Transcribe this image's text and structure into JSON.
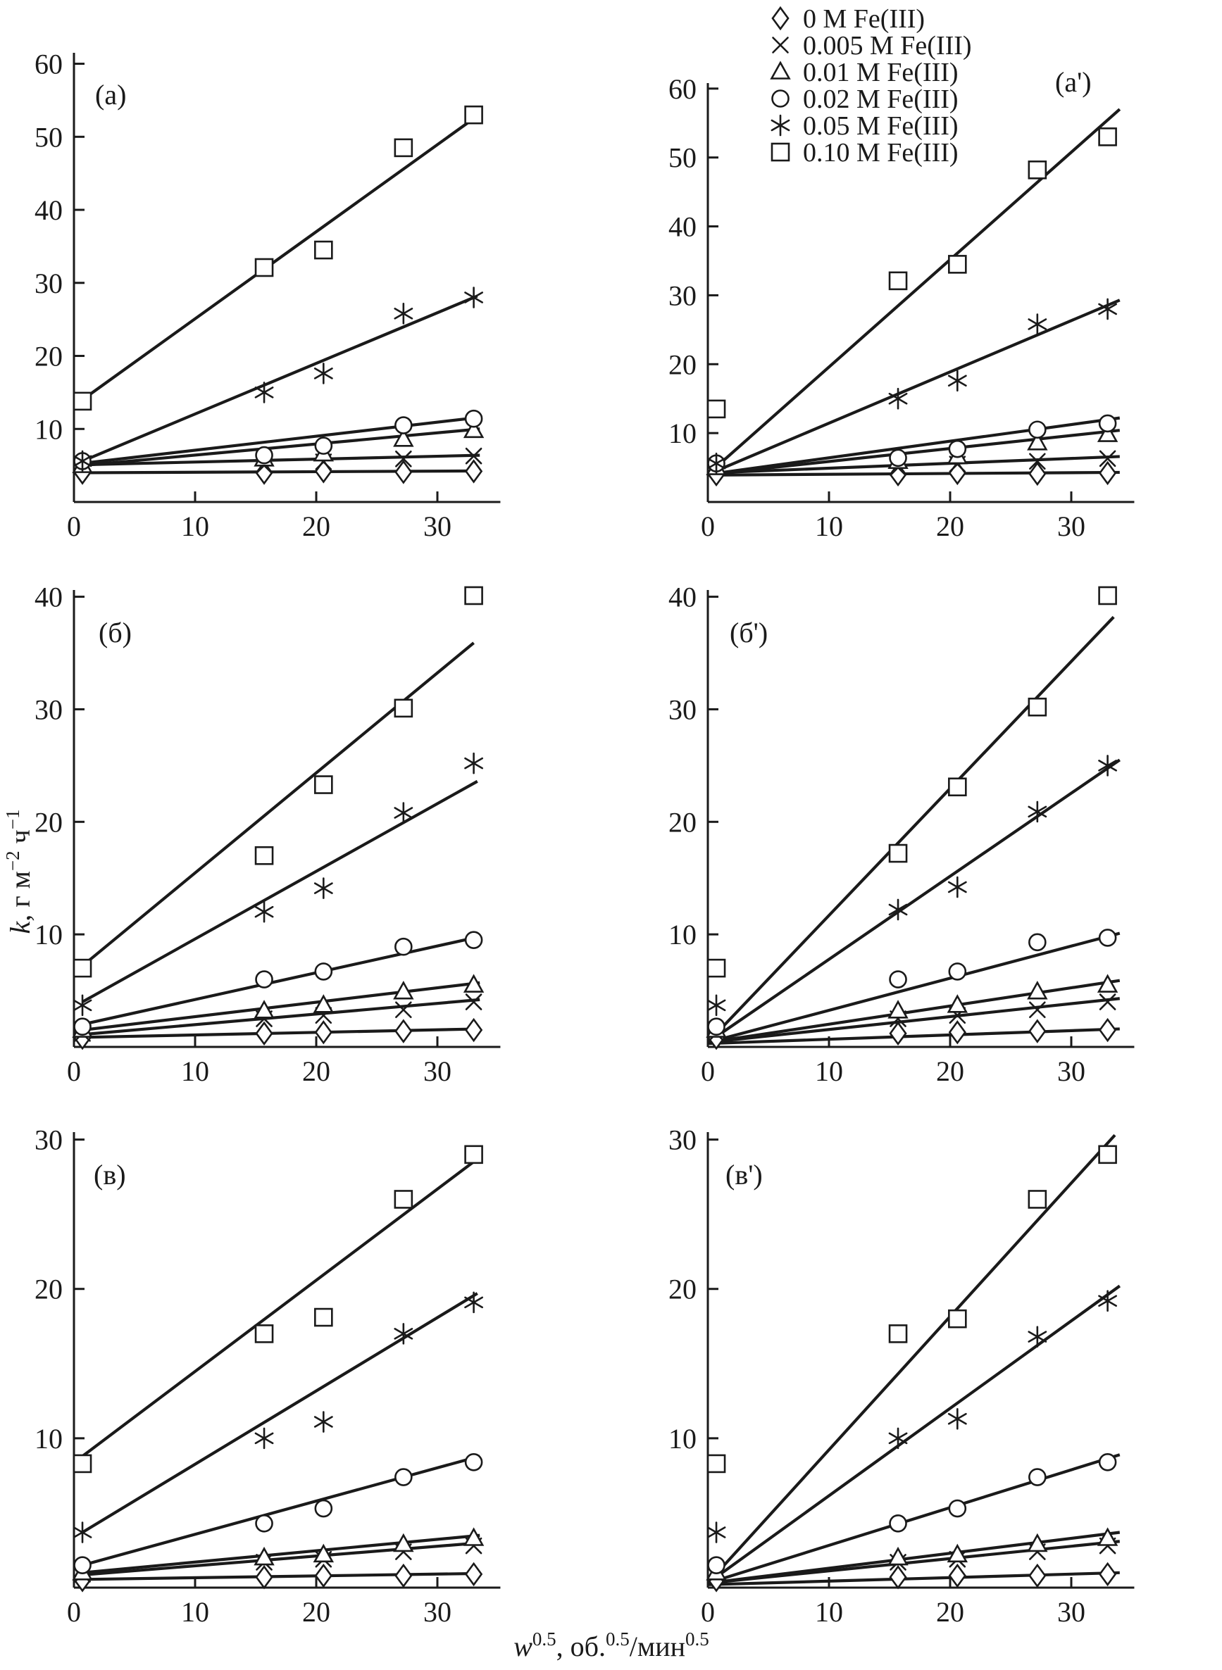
{
  "figure": {
    "background": "#ffffff",
    "ink_color": "#1a1a1a",
    "x_axis_label_plain": "w0.5, об.0.5/мин0.5",
    "y_axis_label_plain": "k, г м−2 ч−1",
    "x_axis_label_parts": [
      {
        "t": "w",
        "italic": true
      },
      {
        "t": "0.5",
        "sup": true
      },
      {
        "t": ", об."
      },
      {
        "t": "0.5",
        "sup": true
      },
      {
        "t": "/мин"
      },
      {
        "t": "0.5",
        "sup": true
      }
    ],
    "y_axis_label_parts": [
      {
        "t": "k",
        "italic": true
      },
      {
        "t": ", г м"
      },
      {
        "t": "−2",
        "sup": true
      },
      {
        "t": " ч"
      },
      {
        "t": "−1",
        "sup": true
      }
    ]
  },
  "legend": {
    "items": [
      {
        "marker": "diamond",
        "label": "0 M Fe(III)"
      },
      {
        "marker": "x-cross",
        "label": "0.005 M Fe(III)"
      },
      {
        "marker": "triangle",
        "label": "0.01 M Fe(III)"
      },
      {
        "marker": "circle",
        "label": "0.02 M Fe(III)"
      },
      {
        "marker": "asterisk",
        "label": "0.05 M Fe(III)"
      },
      {
        "marker": "square",
        "label": "0.10 M Fe(III)"
      }
    ]
  },
  "chart_data": [
    {
      "id": "a",
      "label": "(а)",
      "type": "scatter",
      "xlim": [
        0,
        35.2
      ],
      "ylim": [
        0,
        61.5
      ],
      "xticks": [
        0,
        10,
        20,
        30
      ],
      "yticks": [
        10,
        20,
        30,
        40,
        50,
        60
      ],
      "x": [
        0.7,
        15.7,
        20.6,
        27.2,
        33
      ],
      "series": [
        {
          "name": "0 M Fe(III)",
          "marker": "diamond",
          "y": [
            4.0,
            4.0,
            4.2,
            4.1,
            4.2
          ],
          "trend": {
            "x": [
              0.7,
              33.5
            ],
            "y": [
              4.0,
              4.25
            ]
          }
        },
        {
          "name": "0.005 M Fe(III)",
          "marker": "x-cross",
          "y": [
            5.2,
            5.0,
            5.5,
            5.9,
            6.3
          ],
          "trend": {
            "x": [
              0.7,
              33.5
            ],
            "y": [
              5.1,
              6.4
            ]
          }
        },
        {
          "name": "0.01 M Fe(III)",
          "marker": "triangle",
          "y": [
            5.0,
            5.9,
            6.6,
            8.6,
            9.8
          ],
          "trend": {
            "x": [
              0.7,
              33.5
            ],
            "y": [
              5.0,
              10.0
            ]
          }
        },
        {
          "name": "0.02 M Fe(III)",
          "marker": "circle",
          "y": [
            5.6,
            6.4,
            7.7,
            10.5,
            11.4
          ],
          "trend": {
            "x": [
              0.7,
              33.5
            ],
            "y": [
              5.3,
              11.6
            ]
          }
        },
        {
          "name": "0.05 M Fe(III)",
          "marker": "asterisk",
          "y": [
            5.6,
            15.0,
            17.6,
            25.8,
            28.0
          ],
          "trend": {
            "x": [
              0.7,
              33.3
            ],
            "y": [
              5.6,
              28.2
            ]
          }
        },
        {
          "name": "0.10 M Fe(III)",
          "marker": "square",
          "y": [
            13.8,
            32.1,
            34.5,
            48.5,
            53.0
          ],
          "trend": {
            "x": [
              0.7,
              33.0
            ],
            "y": [
              14.0,
              52.5
            ]
          }
        }
      ]
    },
    {
      "id": "a-prime",
      "label": "(а')",
      "type": "scatter",
      "xlim": [
        0,
        35.2
      ],
      "ylim": [
        0,
        60.8
      ],
      "xticks": [
        0,
        10,
        20,
        30
      ],
      "yticks": [
        10,
        20,
        30,
        40,
        50,
        60
      ],
      "x": [
        0.7,
        15.7,
        20.6,
        27.2,
        33
      ],
      "series": [
        {
          "name": "0 M Fe(III)",
          "marker": "diamond",
          "y": [
            4.0,
            4.0,
            4.2,
            4.1,
            4.2
          ],
          "trend": {
            "x": [
              0,
              34
            ],
            "y": [
              3.9,
              4.3
            ]
          }
        },
        {
          "name": "0.005 M Fe(III)",
          "marker": "x-cross",
          "y": [
            5.2,
            5.0,
            5.5,
            5.9,
            6.3
          ],
          "trend": {
            "x": [
              0,
              34
            ],
            "y": [
              4.2,
              6.6
            ]
          }
        },
        {
          "name": "0.01 M Fe(III)",
          "marker": "triangle",
          "y": [
            5.0,
            5.9,
            6.6,
            8.6,
            9.8
          ],
          "trend": {
            "x": [
              0,
              34
            ],
            "y": [
              4.0,
              10.4
            ]
          }
        },
        {
          "name": "0.02 M Fe(III)",
          "marker": "circle",
          "y": [
            5.6,
            6.4,
            7.7,
            10.5,
            11.4
          ],
          "trend": {
            "x": [
              0,
              34
            ],
            "y": [
              4.0,
              12.2
            ]
          }
        },
        {
          "name": "0.05 M Fe(III)",
          "marker": "asterisk",
          "y": [
            5.6,
            15.0,
            17.6,
            25.8,
            28.0
          ],
          "trend": {
            "x": [
              0,
              34
            ],
            "y": [
              4.0,
              29.3
            ]
          }
        },
        {
          "name": "0.10 M Fe(III)",
          "marker": "square",
          "y": [
            13.5,
            32.1,
            34.5,
            48.2,
            53.0
          ],
          "trend": {
            "x": [
              0,
              34
            ],
            "y": [
              4.0,
              57.0
            ]
          }
        }
      ]
    },
    {
      "id": "b",
      "label": "(б)",
      "type": "scatter",
      "xlim": [
        0,
        35.2
      ],
      "ylim": [
        0,
        40.6
      ],
      "xticks": [
        0,
        10,
        20,
        30
      ],
      "yticks": [
        10,
        20,
        30,
        40
      ],
      "x": [
        0.7,
        15.7,
        20.6,
        27.2,
        33
      ],
      "series": [
        {
          "name": "0 M Fe(III)",
          "marker": "diamond",
          "y": [
            0.8,
            1.2,
            1.3,
            1.4,
            1.5
          ],
          "trend": {
            "x": [
              0.7,
              33.5
            ],
            "y": [
              0.85,
              1.6
            ]
          }
        },
        {
          "name": "0.005 M Fe(III)",
          "marker": "x-cross",
          "y": [
            1.2,
            2.5,
            2.8,
            3.3,
            4.0
          ],
          "trend": {
            "x": [
              0.7,
              33.5
            ],
            "y": [
              1.1,
              4.2
            ]
          }
        },
        {
          "name": "0.01 M Fe(III)",
          "marker": "triangle",
          "y": [
            1.5,
            3.2,
            3.7,
            4.9,
            5.5
          ],
          "trend": {
            "x": [
              0.7,
              33.5
            ],
            "y": [
              1.5,
              5.7
            ]
          }
        },
        {
          "name": "0.02 M Fe(III)",
          "marker": "circle",
          "y": [
            1.8,
            6.0,
            6.7,
            8.9,
            9.5
          ],
          "trend": {
            "x": [
              0.7,
              33.5
            ],
            "y": [
              2.0,
              9.8
            ]
          }
        },
        {
          "name": "0.05 M Fe(III)",
          "marker": "asterisk",
          "y": [
            3.7,
            12.0,
            14.1,
            20.8,
            25.2
          ],
          "trend": {
            "x": [
              0.7,
              33.3
            ],
            "y": [
              4.0,
              23.6
            ]
          }
        },
        {
          "name": "0.10 M Fe(III)",
          "marker": "square",
          "y": [
            7.0,
            17.0,
            23.3,
            30.1,
            40.1
          ],
          "trend": {
            "x": [
              0.7,
              33.0
            ],
            "y": [
              7.2,
              35.9
            ]
          }
        }
      ]
    },
    {
      "id": "b-prime",
      "label": "(б')",
      "type": "scatter",
      "xlim": [
        0,
        35.2
      ],
      "ylim": [
        0,
        40.6
      ],
      "xticks": [
        0,
        10,
        20,
        30
      ],
      "yticks": [
        10,
        20,
        30,
        40
      ],
      "x": [
        0.7,
        15.7,
        20.6,
        27.2,
        33
      ],
      "series": [
        {
          "name": "0 M Fe(III)",
          "marker": "diamond",
          "y": [
            0.8,
            1.2,
            1.3,
            1.4,
            1.5
          ],
          "trend": {
            "x": [
              0,
              34
            ],
            "y": [
              0.3,
              1.6
            ]
          }
        },
        {
          "name": "0.005 M Fe(III)",
          "marker": "x-cross",
          "y": [
            1.2,
            2.5,
            2.8,
            3.3,
            4.0
          ],
          "trend": {
            "x": [
              0,
              34
            ],
            "y": [
              0.4,
              4.3
            ]
          }
        },
        {
          "name": "0.01 M Fe(III)",
          "marker": "triangle",
          "y": [
            1.5,
            3.2,
            3.7,
            4.9,
            5.5
          ],
          "trend": {
            "x": [
              0,
              34
            ],
            "y": [
              0.4,
              5.9
            ]
          }
        },
        {
          "name": "0.02 M Fe(III)",
          "marker": "circle",
          "y": [
            1.8,
            6.0,
            6.7,
            9.3,
            9.7
          ],
          "trend": {
            "x": [
              0,
              34
            ],
            "y": [
              0.4,
              10.1
            ]
          }
        },
        {
          "name": "0.05 M Fe(III)",
          "marker": "asterisk",
          "y": [
            3.7,
            12.2,
            14.2,
            20.9,
            25.0
          ],
          "trend": {
            "x": [
              0,
              34
            ],
            "y": [
              0.4,
              25.5
            ]
          }
        },
        {
          "name": "0.10 M Fe(III)",
          "marker": "square",
          "y": [
            7.0,
            17.2,
            23.1,
            30.2,
            40.1
          ],
          "trend": {
            "x": [
              0,
              33.5
            ],
            "y": [
              0.4,
              38.2
            ]
          }
        }
      ]
    },
    {
      "id": "v",
      "label": "(в)",
      "type": "scatter",
      "xlim": [
        0,
        35.2
      ],
      "ylim": [
        0,
        30.5
      ],
      "xticks": [
        0,
        10,
        20,
        30
      ],
      "yticks": [
        10,
        20,
        30
      ],
      "x": [
        0.7,
        15.7,
        20.6,
        27.2,
        33
      ],
      "series": [
        {
          "name": "0 M Fe(III)",
          "marker": "diamond",
          "y": [
            0.5,
            0.7,
            0.8,
            0.8,
            0.9
          ],
          "trend": {
            "x": [
              0.7,
              33.5
            ],
            "y": [
              0.55,
              0.95
            ]
          }
        },
        {
          "name": "0.005 M Fe(III)",
          "marker": "x-cross",
          "y": [
            0.9,
            1.7,
            1.9,
            2.4,
            2.8
          ],
          "trend": {
            "x": [
              0.7,
              33.5
            ],
            "y": [
              0.85,
              3.0
            ]
          }
        },
        {
          "name": "0.01 M Fe(III)",
          "marker": "triangle",
          "y": [
            1.0,
            2.0,
            2.2,
            2.9,
            3.3
          ],
          "trend": {
            "x": [
              0.7,
              33.5
            ],
            "y": [
              1.0,
              3.5
            ]
          }
        },
        {
          "name": "0.02 M Fe(III)",
          "marker": "circle",
          "y": [
            1.5,
            4.3,
            5.3,
            7.4,
            8.4
          ],
          "trend": {
            "x": [
              0.7,
              33.5
            ],
            "y": [
              1.5,
              8.8
            ]
          }
        },
        {
          "name": "0.05 M Fe(III)",
          "marker": "asterisk",
          "y": [
            3.7,
            10.0,
            11.1,
            17.0,
            19.1
          ],
          "trend": {
            "x": [
              0.7,
              33.3
            ],
            "y": [
              3.7,
              19.7
            ]
          }
        },
        {
          "name": "0.10 M Fe(III)",
          "marker": "square",
          "y": [
            8.3,
            17.0,
            18.1,
            26.0,
            29.0
          ],
          "trend": {
            "x": [
              0.7,
              33.3
            ],
            "y": [
              8.8,
              28.7
            ]
          }
        }
      ]
    },
    {
      "id": "v-prime",
      "label": "(в')",
      "type": "scatter",
      "xlim": [
        0,
        35.2
      ],
      "ylim": [
        0,
        30.5
      ],
      "xticks": [
        0,
        10,
        20,
        30
      ],
      "yticks": [
        10,
        20,
        30
      ],
      "x": [
        0.7,
        15.7,
        20.6,
        27.2,
        33
      ],
      "series": [
        {
          "name": "0 M Fe(III)",
          "marker": "diamond",
          "y": [
            0.5,
            0.7,
            0.8,
            0.8,
            0.9
          ],
          "trend": {
            "x": [
              0,
              34
            ],
            "y": [
              0.2,
              1.0
            ]
          }
        },
        {
          "name": "0.005 M Fe(III)",
          "marker": "x-cross",
          "y": [
            0.9,
            1.7,
            1.9,
            2.4,
            2.8
          ],
          "trend": {
            "x": [
              0,
              34
            ],
            "y": [
              0.3,
              3.1
            ]
          }
        },
        {
          "name": "0.01 M Fe(III)",
          "marker": "triangle",
          "y": [
            1.0,
            2.0,
            2.2,
            2.9,
            3.3
          ],
          "trend": {
            "x": [
              0,
              34
            ],
            "y": [
              0.3,
              3.7
            ]
          }
        },
        {
          "name": "0.02 M Fe(III)",
          "marker": "circle",
          "y": [
            1.5,
            4.3,
            5.3,
            7.4,
            8.4
          ],
          "trend": {
            "x": [
              0,
              34
            ],
            "y": [
              0.3,
              8.9
            ]
          }
        },
        {
          "name": "0.05 M Fe(III)",
          "marker": "asterisk",
          "y": [
            3.7,
            10.0,
            11.3,
            16.8,
            19.2
          ],
          "trend": {
            "x": [
              0,
              34
            ],
            "y": [
              0.3,
              20.2
            ]
          }
        },
        {
          "name": "0.10 M Fe(III)",
          "marker": "square",
          "y": [
            8.3,
            17.0,
            18.0,
            26.0,
            29.0
          ],
          "trend": {
            "x": [
              0,
              33.6
            ],
            "y": [
              0.3,
              30.3
            ]
          }
        }
      ]
    }
  ]
}
